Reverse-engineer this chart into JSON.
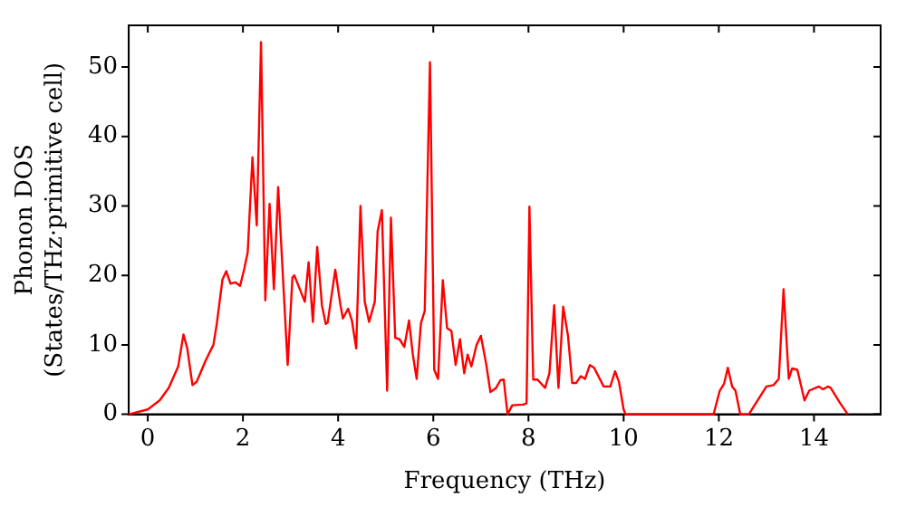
{
  "chart_data": {
    "type": "line",
    "xlabel": "Frequency (THz)",
    "ylabel": "Phonon DOS\n(States/THz·primitive cell)",
    "xlim": [
      -0.4,
      15.4
    ],
    "ylim": [
      0,
      56
    ],
    "xticks": [
      0,
      2,
      4,
      6,
      8,
      10,
      12,
      14
    ],
    "yticks": [
      0,
      10,
      20,
      30,
      40,
      50
    ],
    "grid": false,
    "legend": false,
    "marker": "none",
    "line_style": "solid",
    "series": [
      {
        "color": "#ff0000",
        "x": [
          -0.4,
          0,
          0.25,
          0.44,
          0.64,
          0.75,
          0.83,
          0.94,
          1.03,
          1.22,
          1.38,
          1.45,
          1.57,
          1.65,
          1.74,
          1.84,
          1.94,
          2.03,
          2.1,
          2.2,
          2.29,
          2.38,
          2.47,
          2.56,
          2.65,
          2.74,
          2.94,
          3.04,
          3.08,
          3.3,
          3.38,
          3.47,
          3.56,
          3.66,
          3.74,
          3.78,
          3.94,
          4.05,
          4.1,
          4.21,
          4.29,
          4.38,
          4.47,
          4.56,
          4.65,
          4.77,
          4.83,
          4.92,
          5.03,
          5.11,
          5.2,
          5.29,
          5.39,
          5.49,
          5.57,
          5.65,
          5.74,
          5.82,
          5.93,
          6.02,
          6.1,
          6.2,
          6.29,
          6.38,
          6.47,
          6.56,
          6.65,
          6.72,
          6.8,
          6.91,
          7.0,
          7.11,
          7.2,
          7.32,
          7.41,
          7.48,
          7.56,
          7.66,
          7.89,
          7.96,
          8.02,
          8.1,
          8.19,
          8.35,
          8.44,
          8.54,
          8.63,
          8.73,
          8.83,
          8.92,
          9.0,
          9.1,
          9.19,
          9.29,
          9.38,
          9.58,
          9.72,
          9.82,
          9.9,
          10.0,
          10.04,
          11.89,
          12.02,
          12.11,
          12.19,
          12.28,
          12.35,
          12.45,
          12.63,
          13.0,
          13.15,
          13.26,
          13.36,
          13.47,
          13.54,
          13.65,
          13.8,
          13.9,
          14.1,
          14.19,
          14.29,
          14.35,
          14.55,
          14.71
        ],
        "values": [
          0,
          0.7,
          2.0,
          3.8,
          6.9,
          11.5,
          9.5,
          4.2,
          4.7,
          7.8,
          10,
          13,
          19.4,
          20.6,
          18.8,
          19,
          18.5,
          21,
          23.3,
          37,
          27.2,
          53.6,
          16.4,
          30.3,
          18,
          32.7,
          7.1,
          19.7,
          20,
          16.2,
          21.9,
          13.3,
          24.1,
          15.7,
          13,
          13.2,
          20.8,
          15.7,
          13.8,
          15.2,
          13.5,
          9.5,
          30,
          16.2,
          13.3,
          16.2,
          26.3,
          29.4,
          3.4,
          28.3,
          11,
          10.8,
          9.7,
          13.5,
          8.6,
          5.1,
          13.1,
          14.9,
          50.7,
          6.4,
          5.1,
          19.3,
          12.4,
          12,
          7.1,
          10.8,
          5.9,
          8.6,
          6.9,
          10,
          11.3,
          7.3,
          3.2,
          3.8,
          4.9,
          5,
          0,
          1.3,
          1.4,
          1.6,
          29.9,
          5,
          5,
          3.8,
          5.9,
          15.7,
          3.8,
          15.5,
          11.3,
          4.5,
          4.5,
          5.5,
          5.1,
          7.1,
          6.7,
          4,
          4,
          6.2,
          4.7,
          0.7,
          0,
          0,
          3.4,
          4.4,
          6.7,
          4,
          3.4,
          0,
          0,
          4,
          4.2,
          5.1,
          18,
          5.1,
          6.6,
          6.4,
          2,
          3.4,
          4,
          3.6,
          4,
          3.8,
          1.6,
          0
        ]
      }
    ]
  }
}
